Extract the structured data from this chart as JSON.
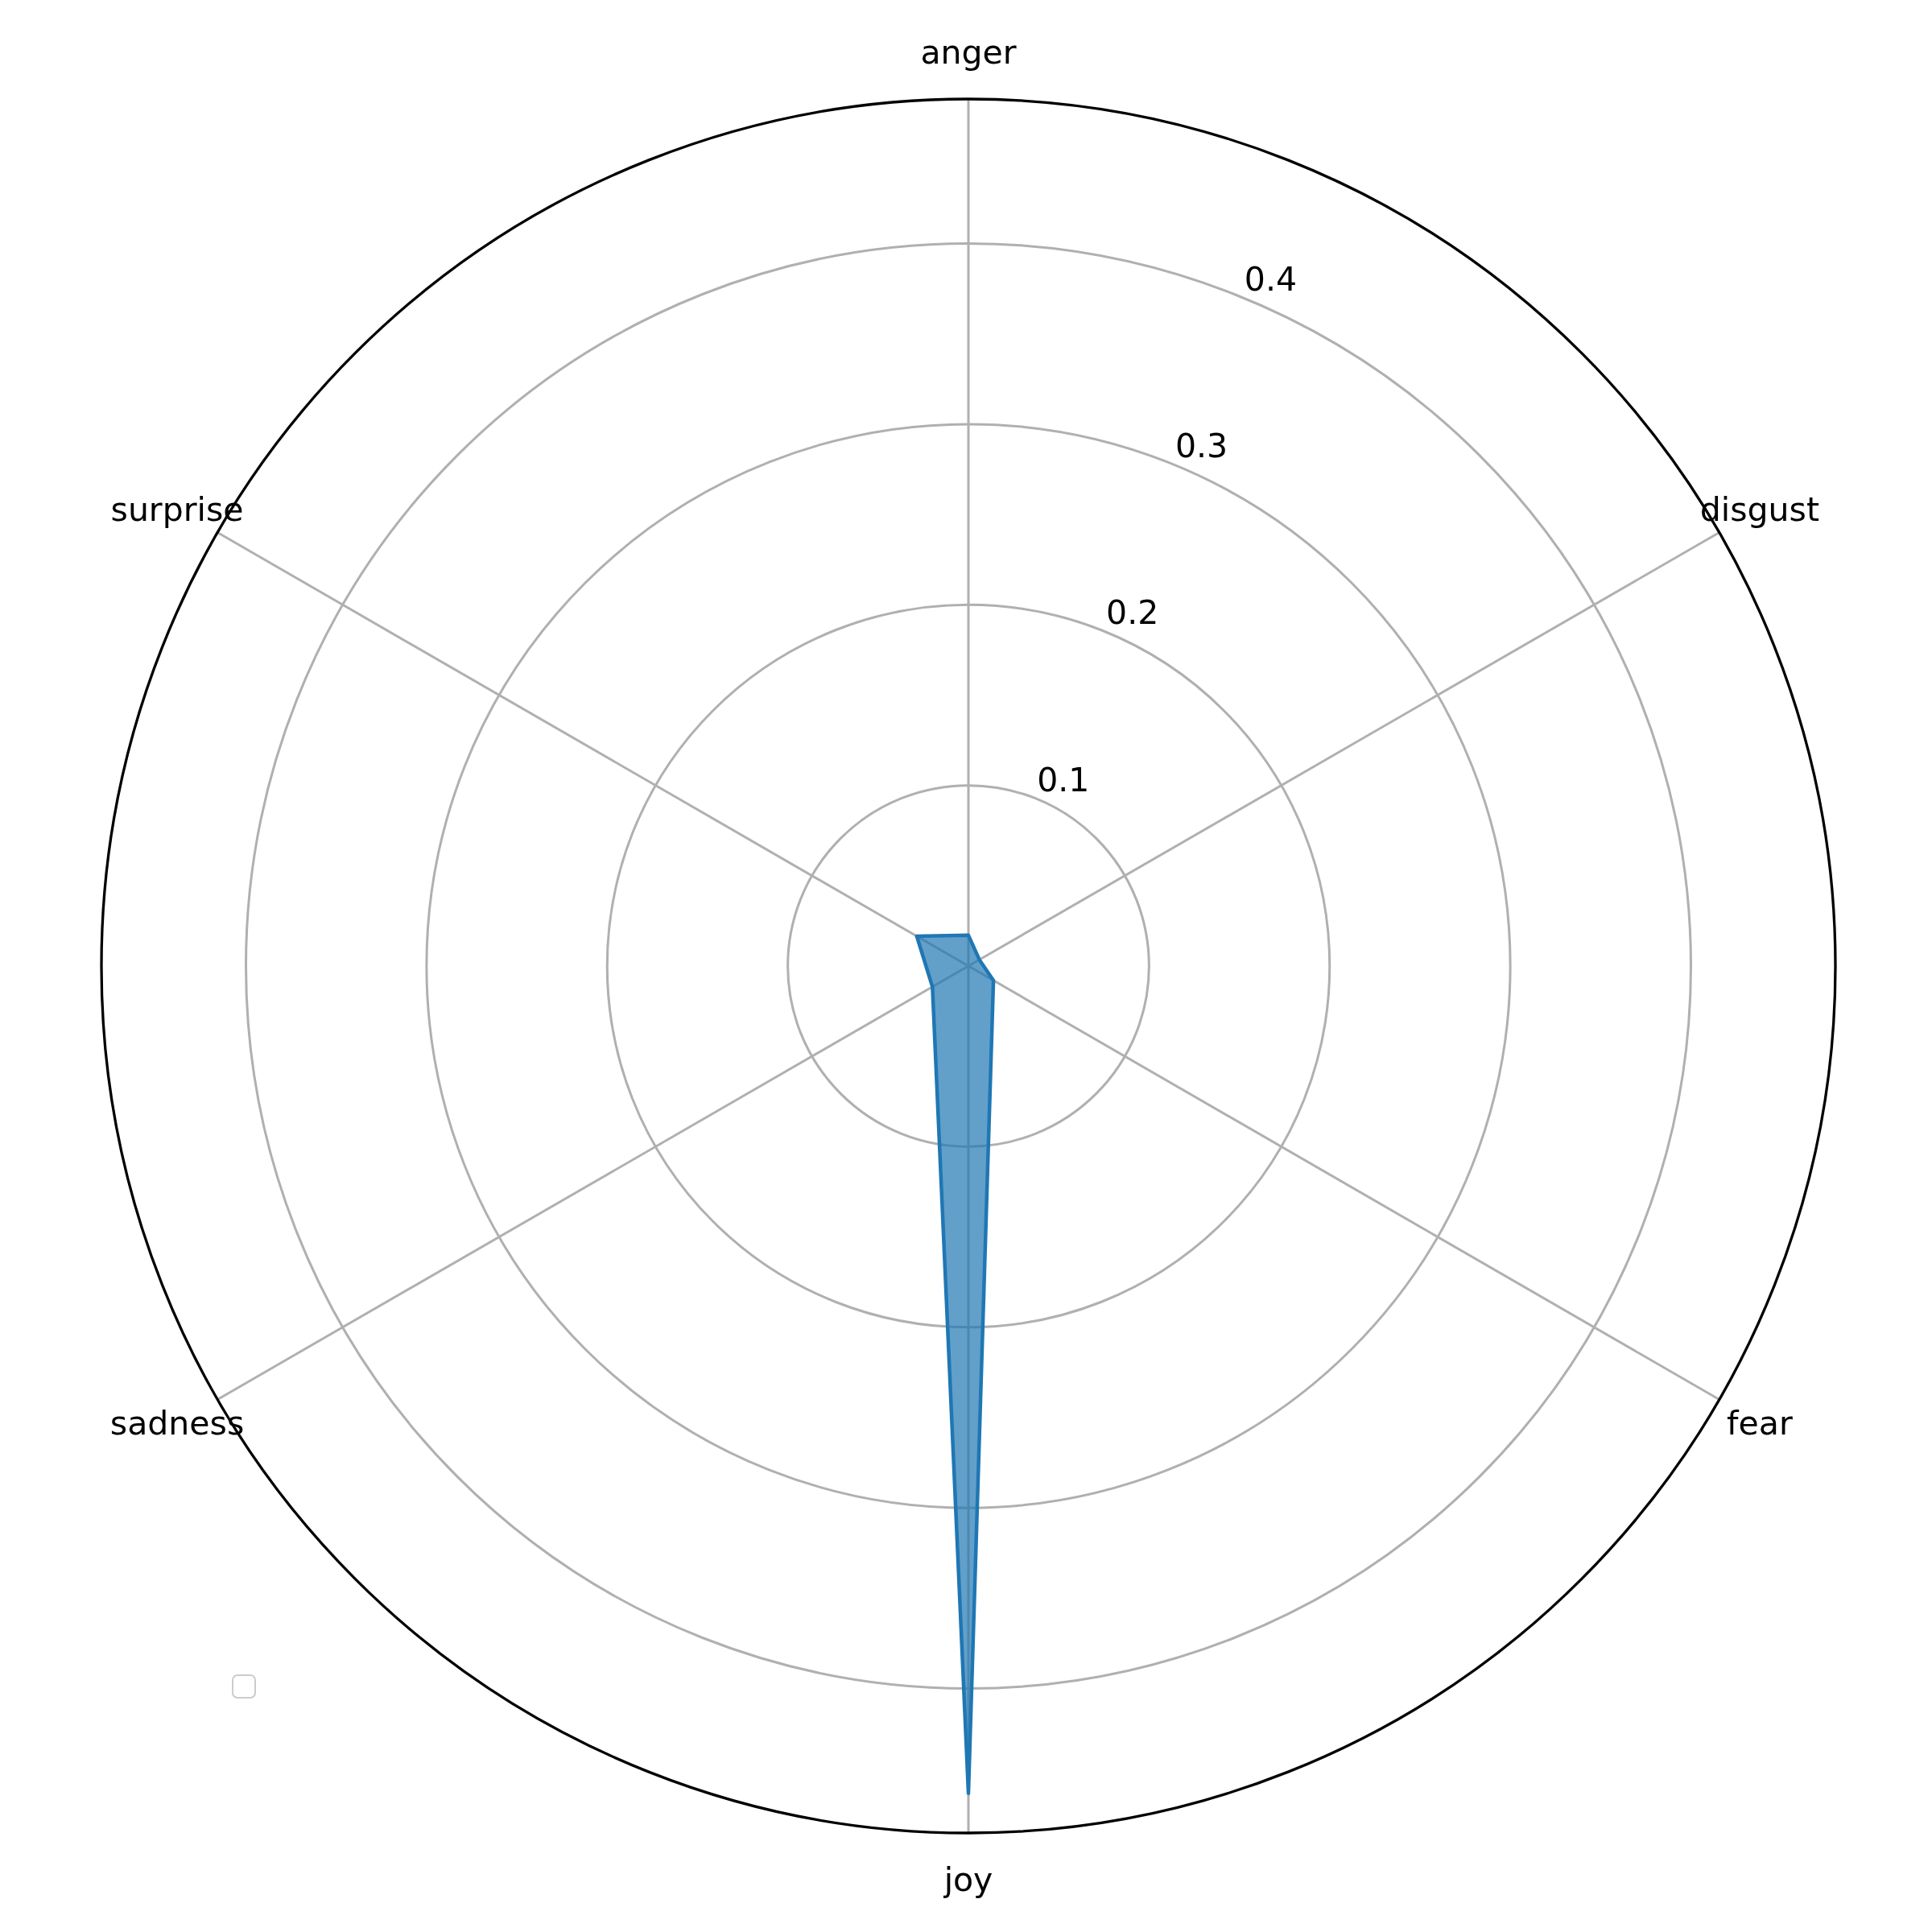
{
  "chart_data": {
    "type": "radar",
    "categories": [
      "anger",
      "disgust",
      "fear",
      "joy",
      "sadness",
      "surprise"
    ],
    "series": [
      {
        "color": "#1f77b4",
        "values": [
          0.017,
          0.007,
          0.016,
          0.458,
          0.023,
          0.033
        ]
      }
    ],
    "ylim": [
      0,
      0.48
    ],
    "yticks": [
      0.1,
      0.2,
      0.3,
      0.4
    ],
    "grid": true
  }
}
